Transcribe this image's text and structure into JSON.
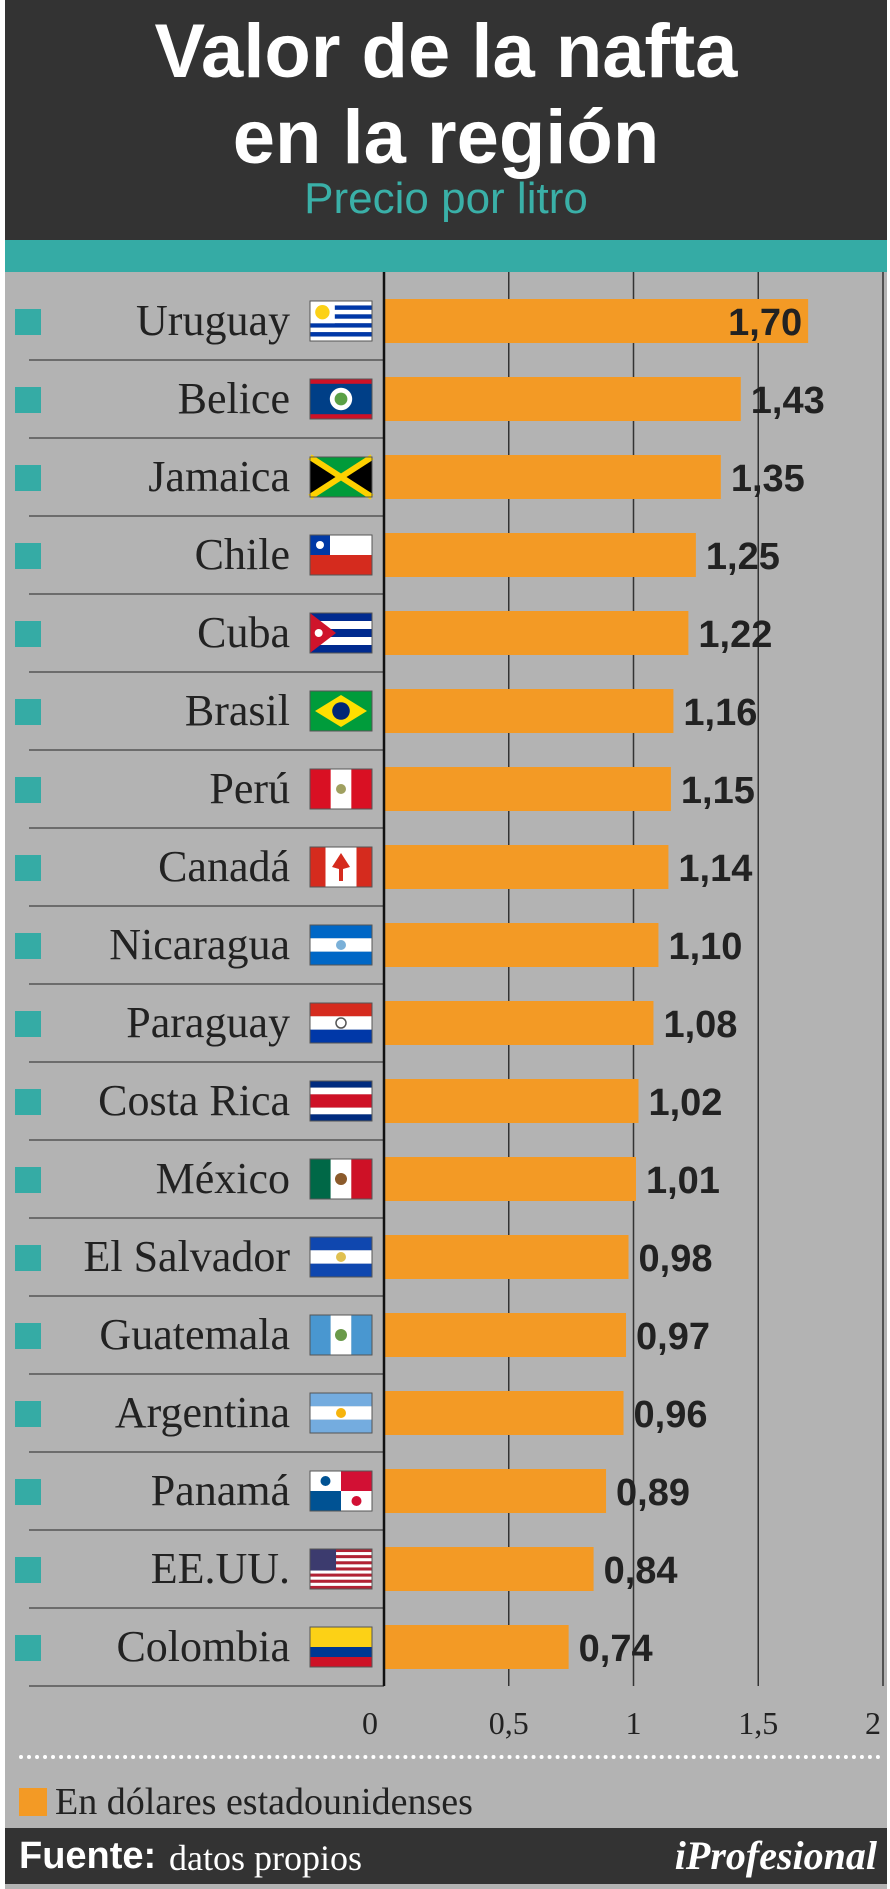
{
  "header": {
    "title_line1": "Valor de la nafta",
    "title_line2": "en la región",
    "subtitle": "Precio por litro"
  },
  "legend": {
    "label": "En dólares estadounidenses",
    "color": "#f39a25"
  },
  "footer": {
    "source_label": "Fuente:",
    "source_value": "datos propios",
    "brand": "iProfesional"
  },
  "colors": {
    "bar": "#f39a25",
    "teal": "#35aba5",
    "header_bg": "#333333",
    "chart_bg": "#b3b3b3"
  },
  "chart_data": {
    "type": "bar",
    "orientation": "horizontal",
    "title": "Valor de la nafta en la región",
    "subtitle": "Precio por litro",
    "categories": [
      "Uruguay",
      "Belice",
      "Jamaica",
      "Chile",
      "Cuba",
      "Brasil",
      "Perú",
      "Canadá",
      "Nicaragua",
      "Paraguay",
      "Costa Rica",
      "México",
      "El Salvador",
      "Guatemala",
      "Argentina",
      "Panamá",
      "EE.UU.",
      "Colombia"
    ],
    "flags": [
      "flag-uruguay-icon",
      "flag-belize-icon",
      "flag-jamaica-icon",
      "flag-chile-icon",
      "flag-cuba-icon",
      "flag-brazil-icon",
      "flag-peru-icon",
      "flag-canada-icon",
      "flag-nicaragua-icon",
      "flag-paraguay-icon",
      "flag-costa-rica-icon",
      "flag-mexico-icon",
      "flag-el-salvador-icon",
      "flag-guatemala-icon",
      "flag-argentina-icon",
      "flag-panama-icon",
      "flag-usa-icon",
      "flag-colombia-icon"
    ],
    "values": [
      1.7,
      1.43,
      1.35,
      1.25,
      1.22,
      1.16,
      1.15,
      1.14,
      1.1,
      1.08,
      1.02,
      1.01,
      0.98,
      0.97,
      0.96,
      0.89,
      0.84,
      0.74
    ],
    "value_labels": [
      "1,70",
      "1,43",
      "1,35",
      "1,25",
      "1,22",
      "1,16",
      "1,15",
      "1,14",
      "1,10",
      "1,08",
      "1,02",
      "1,01",
      "0,98",
      "0,97",
      "0,96",
      "0,89",
      "0,84",
      "0,74"
    ],
    "xlim": [
      0,
      2
    ],
    "x_ticks": [
      0,
      0.5,
      1,
      1.5,
      2
    ],
    "x_tick_labels": [
      "0",
      "0,5",
      "1",
      "1,5",
      "2"
    ],
    "grid": true,
    "legend_position": "bottom-left"
  }
}
